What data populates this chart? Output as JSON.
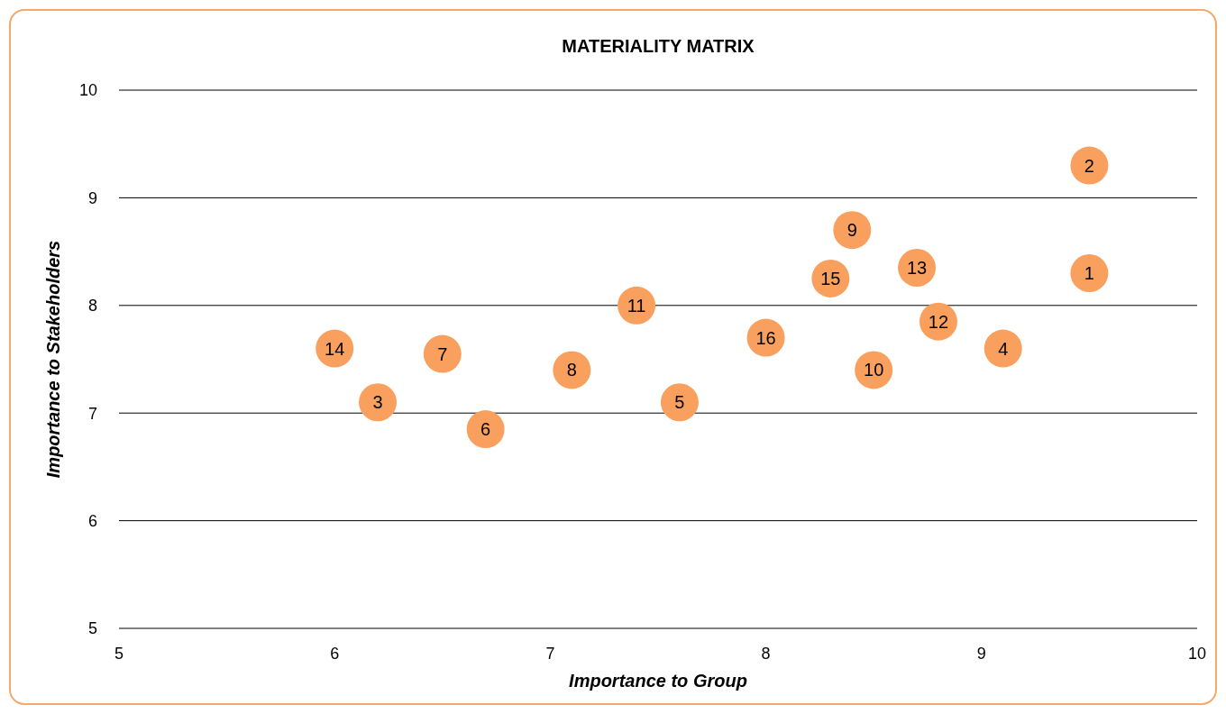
{
  "chart_data": {
    "type": "scatter",
    "title": "MATERIALITY MATRIX",
    "xlabel": "Importance to Group",
    "ylabel": "Importance to Stakeholders",
    "xlim": [
      5,
      10
    ],
    "xticks": [
      5,
      6,
      7,
      8,
      9,
      10
    ],
    "ylim": [
      5,
      10
    ],
    "yticks": [
      5,
      6,
      7,
      8,
      9,
      10
    ],
    "grid": "y",
    "marker": "circle",
    "series": [
      {
        "color": "#f9a05e",
        "x": [
          9.5,
          9.5,
          6.2,
          9.1,
          7.6,
          6.7,
          6.5,
          7.1,
          8.4,
          8.5,
          7.4,
          8.8,
          8.7,
          6.0,
          8.3,
          8.0
        ],
        "values": [
          8.3,
          9.3,
          7.1,
          7.6,
          7.1,
          6.85,
          7.55,
          7.4,
          8.7,
          7.4,
          8.0,
          7.85,
          8.35,
          7.6,
          8.25,
          7.7
        ]
      }
    ],
    "annotations": [
      {
        "text": "1",
        "x": 9.5,
        "y": 8.3
      },
      {
        "text": "2",
        "x": 9.5,
        "y": 9.3
      },
      {
        "text": "3",
        "x": 6.2,
        "y": 7.1
      },
      {
        "text": "4",
        "x": 9.1,
        "y": 7.6
      },
      {
        "text": "5",
        "x": 7.6,
        "y": 7.1
      },
      {
        "text": "6",
        "x": 6.7,
        "y": 6.85
      },
      {
        "text": "7",
        "x": 6.5,
        "y": 7.55
      },
      {
        "text": "8",
        "x": 7.1,
        "y": 7.4
      },
      {
        "text": "9",
        "x": 8.4,
        "y": 8.7
      },
      {
        "text": "10",
        "x": 8.5,
        "y": 7.4
      },
      {
        "text": "11",
        "x": 7.4,
        "y": 8.0
      },
      {
        "text": "12",
        "x": 8.8,
        "y": 7.85
      },
      {
        "text": "13",
        "x": 8.7,
        "y": 8.35
      },
      {
        "text": "14",
        "x": 6.0,
        "y": 7.6
      },
      {
        "text": "15",
        "x": 8.3,
        "y": 8.25
      },
      {
        "text": "16",
        "x": 8.0,
        "y": 7.7
      }
    ]
  }
}
